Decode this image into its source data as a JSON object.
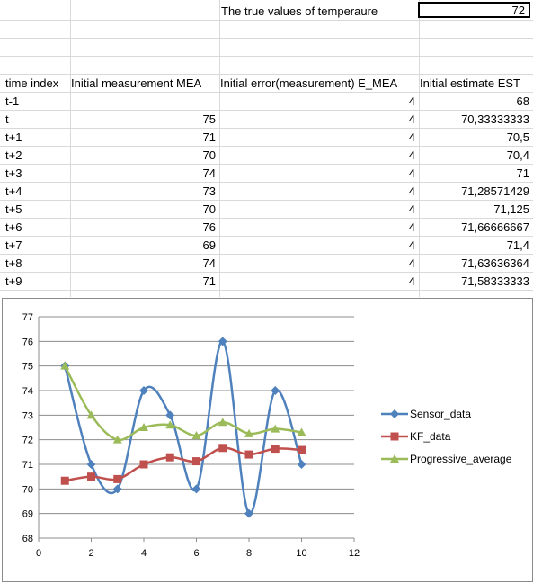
{
  "sheet": {
    "true_label": "The true values of temperaure",
    "true_value": "72",
    "headers": [
      "time index",
      "Initial measurement MEA",
      "Initial error(measurement) E_MEA",
      "Initial estimate EST"
    ],
    "rows": [
      {
        "t": "t-1",
        "mea": "",
        "emea": "4",
        "est": "68"
      },
      {
        "t": "t",
        "mea": "75",
        "emea": "4",
        "est": "70,33333333"
      },
      {
        "t": "t+1",
        "mea": "71",
        "emea": "4",
        "est": "70,5"
      },
      {
        "t": "t+2",
        "mea": "70",
        "emea": "4",
        "est": "70,4"
      },
      {
        "t": "t+3",
        "mea": "74",
        "emea": "4",
        "est": "71"
      },
      {
        "t": "t+4",
        "mea": "73",
        "emea": "4",
        "est": "71,28571429"
      },
      {
        "t": "t+5",
        "mea": "70",
        "emea": "4",
        "est": "71,125"
      },
      {
        "t": "t+6",
        "mea": "76",
        "emea": "4",
        "est": "71,66666667"
      },
      {
        "t": "t+7",
        "mea": "69",
        "emea": "4",
        "est": "71,4"
      },
      {
        "t": "t+8",
        "mea": "74",
        "emea": "4",
        "est": "71,63636364"
      },
      {
        "t": "t+9",
        "mea": "71",
        "emea": "4",
        "est": "71,58333333"
      }
    ]
  },
  "chart_data": {
    "type": "scatter",
    "title": "",
    "xlabel": "",
    "ylabel": "",
    "xlim": [
      0,
      12
    ],
    "ylim": [
      68,
      77
    ],
    "xticks": [
      0,
      2,
      4,
      6,
      8,
      10,
      12
    ],
    "yticks": [
      68,
      69,
      70,
      71,
      72,
      73,
      74,
      75,
      76,
      77
    ],
    "grid": "horizontal",
    "legend_position": "right",
    "x": [
      1,
      2,
      3,
      4,
      5,
      6,
      7,
      8,
      9,
      10
    ],
    "series": [
      {
        "name": "Sensor_data",
        "color": "#4f81bd",
        "marker": "diamond",
        "values": [
          75,
          71,
          70,
          74,
          73,
          70,
          76,
          69,
          74,
          71
        ]
      },
      {
        "name": "KF_data",
        "color": "#c0504d",
        "marker": "square",
        "values": [
          70.33333333,
          70.5,
          70.4,
          71,
          71.28571429,
          71.125,
          71.66666667,
          71.4,
          71.63636364,
          71.58333333
        ]
      },
      {
        "name": "Progressive_average",
        "color": "#9bbb59",
        "marker": "triangle",
        "values": [
          75,
          73,
          72,
          72.5,
          72.6,
          72.17,
          72.71,
          72.25,
          72.44,
          72.3
        ]
      }
    ]
  }
}
